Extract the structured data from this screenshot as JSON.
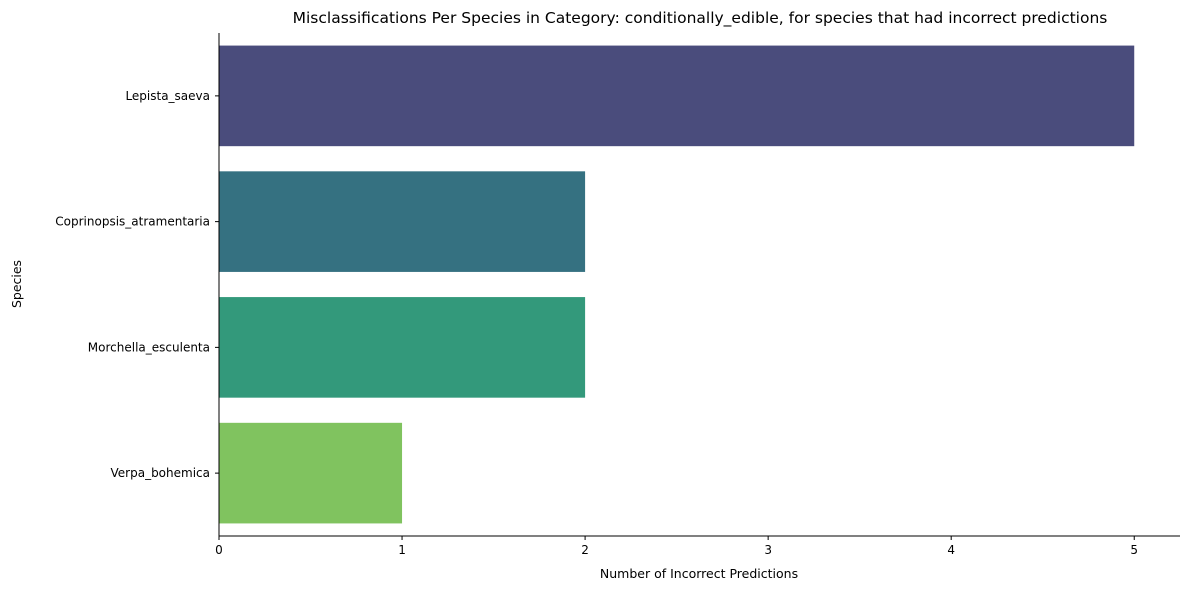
{
  "chart_data": {
    "type": "bar",
    "orientation": "horizontal",
    "title": "Misclassifications Per Species in Category: conditionally_edible, for species that had incorrect predictions",
    "xlabel": "Number of Incorrect Predictions",
    "ylabel": "Species",
    "categories": [
      "Lepista_saeva",
      "Coprinopsis_atramentaria",
      "Morchella_esculenta",
      "Verpa_bohemica"
    ],
    "values": [
      5,
      2,
      2,
      1
    ],
    "colors": [
      "#4a4c7c",
      "#357181",
      "#33997b",
      "#80c35f"
    ],
    "xlim": [
      0,
      5.25
    ],
    "xticks": [
      "0",
      "1",
      "2",
      "3",
      "4",
      "5"
    ],
    "grid": false,
    "legend": "none"
  }
}
